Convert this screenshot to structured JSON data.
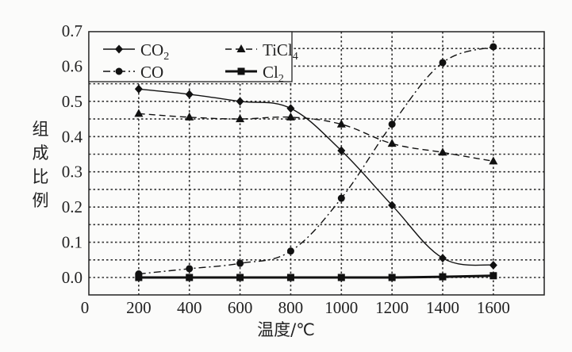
{
  "chart_data": {
    "type": "line",
    "title": "",
    "xlabel": "温度/℃",
    "ylabel": "组成比例",
    "x": [
      200,
      400,
      600,
      800,
      1000,
      1200,
      1400,
      1600
    ],
    "xticks": [
      "0",
      "200",
      "400",
      "600",
      "800",
      "1000",
      "1200",
      "1400",
      "1600"
    ],
    "yticks": [
      "0.0",
      "0.1",
      "0.2",
      "0.3",
      "0.4",
      "0.5",
      "0.6",
      "0.7"
    ],
    "xlim": [
      0,
      1800
    ],
    "ylim": [
      -0.05,
      0.7
    ],
    "grid": true,
    "legend_position": "top-left",
    "series": [
      {
        "name": "CO2",
        "label_main": "CO",
        "label_sub": "2",
        "marker": "diamond",
        "line": "solid",
        "values": [
          0.535,
          0.52,
          0.5,
          0.48,
          0.36,
          0.205,
          0.055,
          0.035
        ]
      },
      {
        "name": "TiCl4",
        "label_main": "TiCl",
        "label_sub": "4",
        "marker": "triangle",
        "line": "dashed",
        "values": [
          0.465,
          0.455,
          0.45,
          0.455,
          0.435,
          0.38,
          0.355,
          0.33
        ]
      },
      {
        "name": "CO",
        "label_main": "CO",
        "label_sub": "",
        "marker": "circle",
        "line": "dashdot",
        "values": [
          0.01,
          0.025,
          0.04,
          0.075,
          0.225,
          0.435,
          0.61,
          0.655
        ]
      },
      {
        "name": "Cl2",
        "label_main": "Cl",
        "label_sub": "2",
        "marker": "square",
        "line": "thick",
        "values": [
          0.0,
          0.0,
          0.0,
          0.0,
          0.0,
          0.0,
          0.002,
          0.005
        ]
      }
    ]
  }
}
